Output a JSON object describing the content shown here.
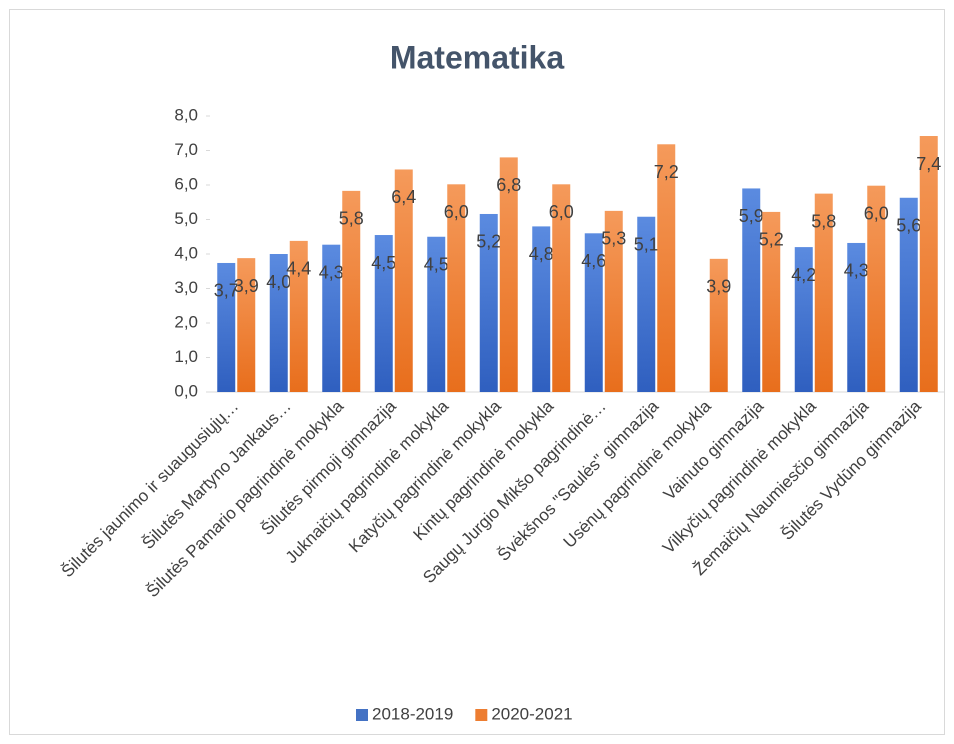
{
  "chart_data": {
    "type": "bar",
    "title": "Matematika",
    "categories": [
      "Šilutės jaunimo ir suaugusiųjų…",
      "Šilutės Martyno Jankaus…",
      "Šilutės Pamario pagrindinė mokykla",
      "Šilutės pirmoji gimnazija",
      "Juknaičių pagrindinė mokykla",
      "Katyčių pagrindinė mokykla",
      "Kintų pagrindinė mokykla",
      "Saugų Jurgio Mikšo pagrindinė…",
      "Švėkšnos \"Saulės\" gimnazija",
      "Usėnų pagrindinė mokykla",
      "Vainuto gimnazija",
      "Vilkyčių pagrindinė mokykla",
      "Žemaičių Naumiesčio gimnazija",
      "Šilutės Vydūno gimnazija"
    ],
    "series": [
      {
        "name": "2018-2019",
        "color": "#4472c4",
        "values": [
          3.74,
          4.0,
          4.27,
          4.55,
          4.5,
          5.16,
          4.8,
          4.6,
          5.08,
          null,
          5.9,
          4.2,
          4.32,
          5.63
        ],
        "value_labels": [
          "3,7",
          "4,0",
          "4,3",
          "4,5",
          "4,5",
          "5,2",
          "4,8",
          "4,6",
          "5,1",
          null,
          "5,9",
          "4,2",
          "4,3",
          "5,6"
        ]
      },
      {
        "name": "2020-2021",
        "color": "#ed7d31",
        "values": [
          3.88,
          4.38,
          5.83,
          6.45,
          6.02,
          6.8,
          6.02,
          5.25,
          7.18,
          3.86,
          5.22,
          5.75,
          5.98,
          7.42
        ],
        "value_labels": [
          "3,9",
          "4,4",
          "5,8",
          "6,4",
          "6,0",
          "6,8",
          "6,0",
          "5,3",
          "7,2",
          "3,9",
          "5,2",
          "5,8",
          "6,0",
          "7,4"
        ]
      }
    ],
    "ylim": [
      0,
      8
    ],
    "yticks": [
      {
        "value": 0,
        "label": "0,0"
      },
      {
        "value": 1,
        "label": "1,0"
      },
      {
        "value": 2,
        "label": "2,0"
      },
      {
        "value": 3,
        "label": "3,0"
      },
      {
        "value": 4,
        "label": "4,0"
      },
      {
        "value": 5,
        "label": "5,0"
      },
      {
        "value": 6,
        "label": "6,0"
      },
      {
        "value": 7,
        "label": "7,0"
      },
      {
        "value": 8,
        "label": "8,0"
      }
    ],
    "legend": "bottom"
  }
}
